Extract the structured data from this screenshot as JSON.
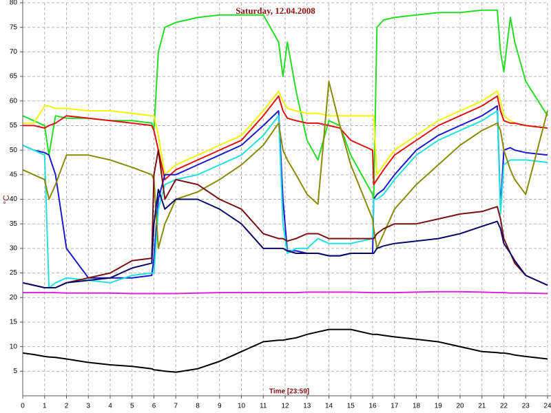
{
  "chart_data": {
    "type": "line",
    "title": "Saturday,  12.04.2008",
    "x_label": "Time [23:59]",
    "y_label": "°C",
    "x": [
      0,
      0.5,
      1,
      1.2,
      1.5,
      2,
      3,
      4,
      5,
      5.9,
      6,
      6.2,
      6.5,
      7,
      8,
      9,
      10,
      11,
      11.7,
      11.9,
      12.1,
      12.5,
      13,
      13.5,
      14,
      14.5,
      15,
      16,
      16.05,
      16.2,
      16.5,
      17,
      18,
      19,
      20,
      21,
      21.7,
      21.85,
      22,
      22.3,
      22.5,
      23,
      24
    ],
    "series": [
      {
        "color": "#22dd22",
        "values": [
          57,
          56,
          55,
          49,
          57,
          56.5,
          56.5,
          56,
          56,
          55.5,
          54,
          70,
          75,
          76,
          77,
          77.5,
          77.5,
          77.5,
          72,
          65,
          72,
          62,
          52,
          48,
          56,
          55,
          49,
          41,
          40,
          75,
          76.5,
          77,
          77.5,
          78,
          78,
          78.5,
          78.5,
          70,
          66,
          77,
          72,
          64,
          57
        ]
      },
      {
        "color": "#f5f500",
        "values": [
          55.5,
          55.5,
          59,
          59,
          58.5,
          58.5,
          58,
          58,
          57.5,
          57,
          57,
          53,
          45,
          47,
          49,
          51,
          53,
          58,
          62,
          60,
          58.5,
          58,
          57.5,
          57.5,
          57,
          57,
          57,
          57,
          57,
          45,
          47,
          50,
          53,
          56,
          58,
          60,
          62,
          60,
          57,
          56,
          55.5,
          55,
          54.5
        ]
      },
      {
        "color": "#dd1111",
        "values": [
          55,
          55,
          54.5,
          55,
          55.5,
          57,
          56.5,
          56,
          55.5,
          55,
          54,
          50,
          44,
          46,
          48,
          50,
          52,
          57,
          61,
          58,
          56.5,
          56,
          55.5,
          55.5,
          55,
          54.5,
          52,
          50,
          43,
          44,
          46,
          49,
          52,
          55,
          57,
          59,
          61,
          58,
          56,
          55.5,
          55.5,
          55,
          54.5
        ]
      },
      {
        "color": "#1a1acc",
        "values": [
          51,
          50,
          49.5,
          49,
          45,
          30,
          24,
          24,
          24,
          24.5,
          28,
          40,
          45,
          45,
          47,
          49,
          51,
          55,
          58,
          40,
          29.5,
          29.5,
          29,
          29,
          28.5,
          28.5,
          29,
          29,
          40,
          41,
          42,
          45,
          50,
          53,
          55,
          57,
          59,
          38,
          50,
          50.5,
          50,
          49.5,
          49
        ]
      },
      {
        "color": "#22e0e0",
        "values": [
          51,
          50,
          49,
          22,
          23,
          24,
          23.5,
          23,
          24.5,
          25,
          25,
          38,
          43,
          44,
          45,
          47,
          49,
          53,
          57,
          35,
          29,
          30,
          30,
          32,
          31,
          31,
          31,
          32,
          40,
          40,
          41,
          44,
          49,
          52,
          54,
          56,
          58,
          37,
          47,
          48,
          48,
          48,
          47.5
        ]
      },
      {
        "color": "#8a8a00",
        "values": [
          46,
          45,
          44,
          40,
          43,
          49,
          49,
          48,
          46.5,
          45,
          44,
          30,
          35,
          40,
          41.5,
          44,
          47,
          51,
          55.5,
          50,
          48,
          45,
          41,
          39,
          64,
          55,
          47,
          36,
          34,
          30,
          33,
          38,
          43,
          47,
          51,
          54,
          55.5,
          54,
          50,
          46,
          44,
          41,
          58
        ]
      },
      {
        "color": "#771111",
        "values": [
          23,
          22.5,
          22,
          22,
          22,
          23,
          24,
          25,
          27.5,
          28,
          45,
          50,
          40,
          44,
          43,
          40,
          38,
          33,
          32,
          32,
          31.5,
          32,
          33,
          33,
          32,
          32,
          32,
          32,
          32,
          33,
          34,
          35,
          35,
          36,
          37,
          37.5,
          38.5,
          36,
          32,
          29,
          27,
          24.5,
          22.5
        ]
      },
      {
        "color": "#0a0a66",
        "values": [
          23,
          22.5,
          22,
          22,
          22,
          23,
          23.5,
          24,
          26,
          27,
          35,
          42,
          38,
          40,
          40,
          38,
          35,
          30,
          30,
          30,
          29.5,
          29,
          29,
          29,
          28.5,
          28.5,
          29,
          29,
          29,
          30,
          30.5,
          31,
          31.5,
          32,
          33,
          34.5,
          35.5,
          34,
          31,
          29,
          27.5,
          24.5,
          22.5
        ]
      },
      {
        "color": "#dd22dd",
        "values": [
          21,
          21,
          21,
          21,
          21,
          20.9,
          20.9,
          20.9,
          20.8,
          20.8,
          20.8,
          20.8,
          20.8,
          20.8,
          20.9,
          21,
          21,
          21,
          21,
          21,
          21,
          21,
          21.1,
          21.1,
          21.1,
          21.1,
          21.1,
          21,
          21,
          21,
          21,
          21,
          21.1,
          21.2,
          21.2,
          21.1,
          21,
          21,
          21,
          20.9,
          20.9,
          20.9,
          20.8
        ]
      },
      {
        "color": "#000000",
        "values": [
          8.7,
          8.4,
          8,
          7.9,
          7.8,
          7.5,
          6.8,
          6.3,
          6,
          5.5,
          5.3,
          5.2,
          5,
          4.8,
          5.5,
          7,
          9,
          11,
          11.3,
          11.3,
          11.5,
          11.8,
          12.5,
          13,
          13.5,
          13.5,
          13.5,
          12.5,
          12.5,
          12.5,
          12.3,
          12,
          11.5,
          11,
          10,
          9,
          8.8,
          8.7,
          8.7,
          8.5,
          8.3,
          8,
          7.5
        ]
      }
    ],
    "xlim": [
      0,
      24
    ],
    "ylim": [
      0,
      80
    ],
    "xticks": [
      0,
      1,
      2,
      3,
      4,
      5,
      6,
      7,
      8,
      9,
      10,
      11,
      12,
      13,
      14,
      15,
      16,
      17,
      18,
      19,
      20,
      21,
      22,
      23,
      24
    ],
    "yticks": [
      5,
      10,
      15,
      20,
      25,
      30,
      35,
      40,
      45,
      50,
      55,
      60,
      65,
      70,
      75,
      80
    ],
    "grid": true
  }
}
